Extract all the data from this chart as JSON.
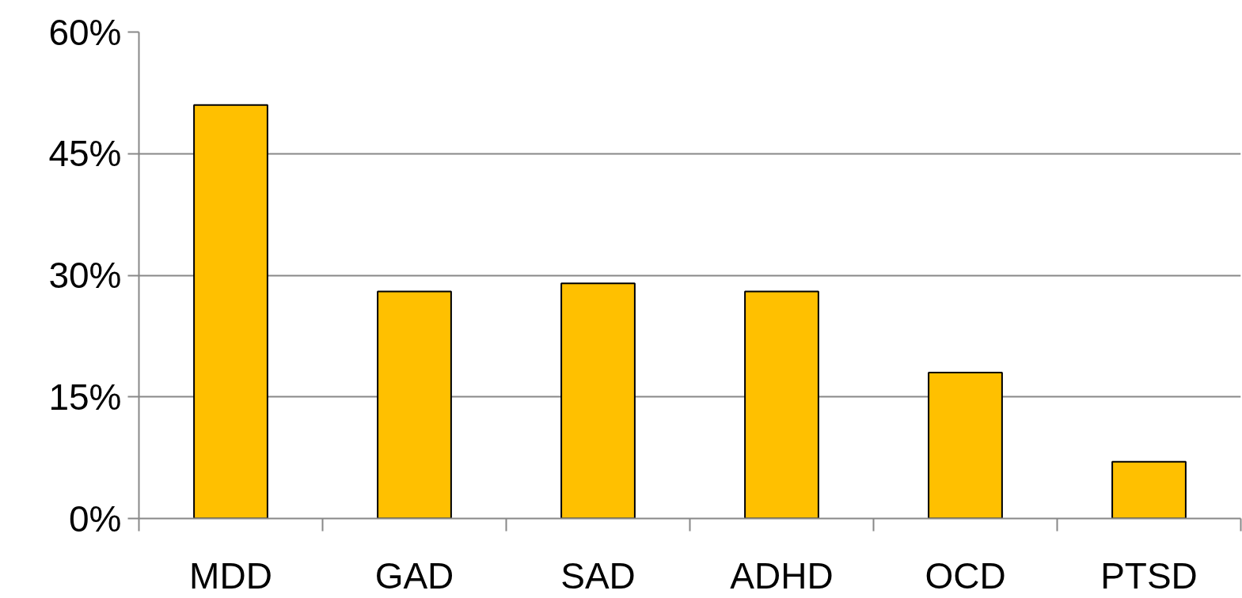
{
  "chart_data": {
    "type": "bar",
    "categories": [
      "MDD",
      "GAD",
      "SAD",
      "ADHD",
      "OCD",
      "PTSD"
    ],
    "values": [
      51,
      28,
      29,
      28,
      18,
      7
    ],
    "color": "#ffc000",
    "ylim": [
      0,
      60
    ],
    "yticks": [
      {
        "value": 0,
        "label": "0%"
      },
      {
        "value": 15,
        "label": "15%"
      },
      {
        "value": 30,
        "label": "30%"
      },
      {
        "value": 45,
        "label": "45%"
      },
      {
        "value": 60,
        "label": "60%"
      }
    ],
    "grid": "y"
  }
}
